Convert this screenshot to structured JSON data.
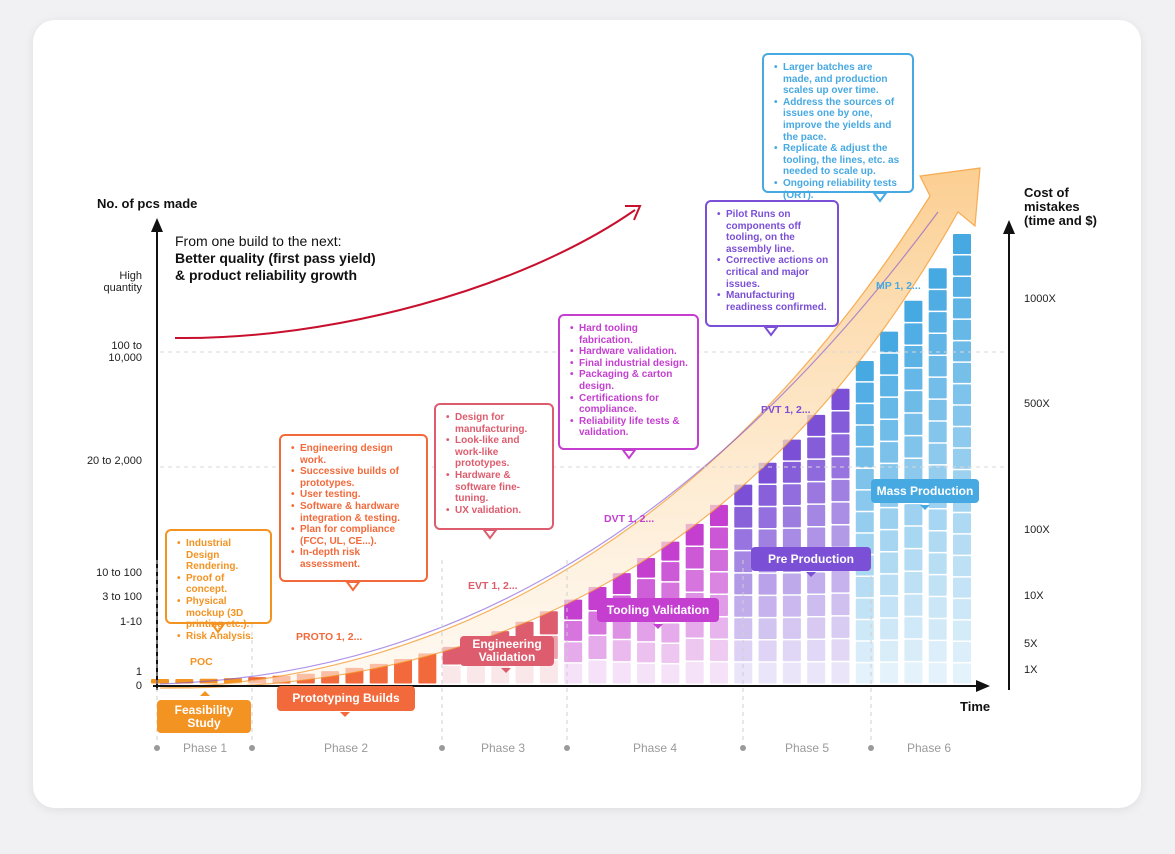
{
  "y_axis": {
    "title": "No. of pcs made",
    "ticks": [
      {
        "label": "High quantity"
      },
      {
        "label": "100 to 10,000"
      },
      {
        "label": "20 to 2,000"
      },
      {
        "label": "10 to 100"
      },
      {
        "label": "3 to 100"
      },
      {
        "label": "1-10"
      },
      {
        "label": "1"
      },
      {
        "label": "0"
      }
    ]
  },
  "right_axis": {
    "title": "Cost of mistakes (time and $)",
    "ticks": [
      "1000X",
      "500X",
      "100X",
      "10X",
      "5X",
      "1X"
    ]
  },
  "x_axis": {
    "title": "Time"
  },
  "headline": {
    "line1": "From one build to the next:",
    "line2": "Better quality (first pass yield)",
    "line3": "& product reliability growth"
  },
  "stages": [
    "POC",
    "PROTO 1, 2...",
    "EVT 1, 2...",
    "DVT 1, 2...",
    "PVT 1, 2...",
    "MP 1, 2..."
  ],
  "phase_pills": [
    {
      "label": "Feasibility Study"
    },
    {
      "label": "Prototyping Builds"
    },
    {
      "label": "Engineering Validation"
    },
    {
      "label": "Tooling Validation"
    },
    {
      "label": "Pre Production"
    },
    {
      "label": "Mass Production"
    }
  ],
  "phases": [
    "Phase 1",
    "Phase 2",
    "Phase 3",
    "Phase 4",
    "Phase 5",
    "Phase 6"
  ],
  "callouts": [
    {
      "items": [
        "Industrial Design Rendering.",
        "Proof of concept.",
        "Physical mockup (3D printing etc.).",
        "Risk Analysis."
      ]
    },
    {
      "items": [
        "Engineering design work.",
        "Successive builds of prototypes.",
        "User testing.",
        "Software & hardware integration & testing.",
        "Plan for compliance (FCC, UL, CE...).",
        "In-depth risk assessment."
      ]
    },
    {
      "items": [
        "Design for manufacturing.",
        "Look-like and work-like prototypes.",
        "Hardware & software fine-tuning.",
        "UX validation."
      ]
    },
    {
      "items": [
        "Hard tooling fabrication.",
        "Hardware validation.",
        "Final industrial design.",
        "Packaging & carton design.",
        "Certifications for compliance.",
        "Reliability life tests & validation."
      ]
    },
    {
      "items": [
        "Pilot Runs on components off tooling, on the assembly line.",
        "Corrective actions on critical and major issues.",
        "Manufacturing readiness confirmed."
      ]
    },
    {
      "items": [
        "Larger batches are made, and production scales up over time.",
        "Address the sources of issues one by one, improve the yields and the pace.",
        "Replicate & adjust the tooling, the lines, etc. as needed to scale up.",
        "Ongoing reliability tests (ORT)."
      ]
    }
  ],
  "colors": {
    "orange": "#f39322",
    "red_orange": "#f26a3b",
    "rose": "#dd5d6e",
    "magenta": "#c43fd0",
    "purple": "#7b4fd6",
    "blue": "#47a9e2",
    "headline_arrow": "#c8102e"
  }
}
